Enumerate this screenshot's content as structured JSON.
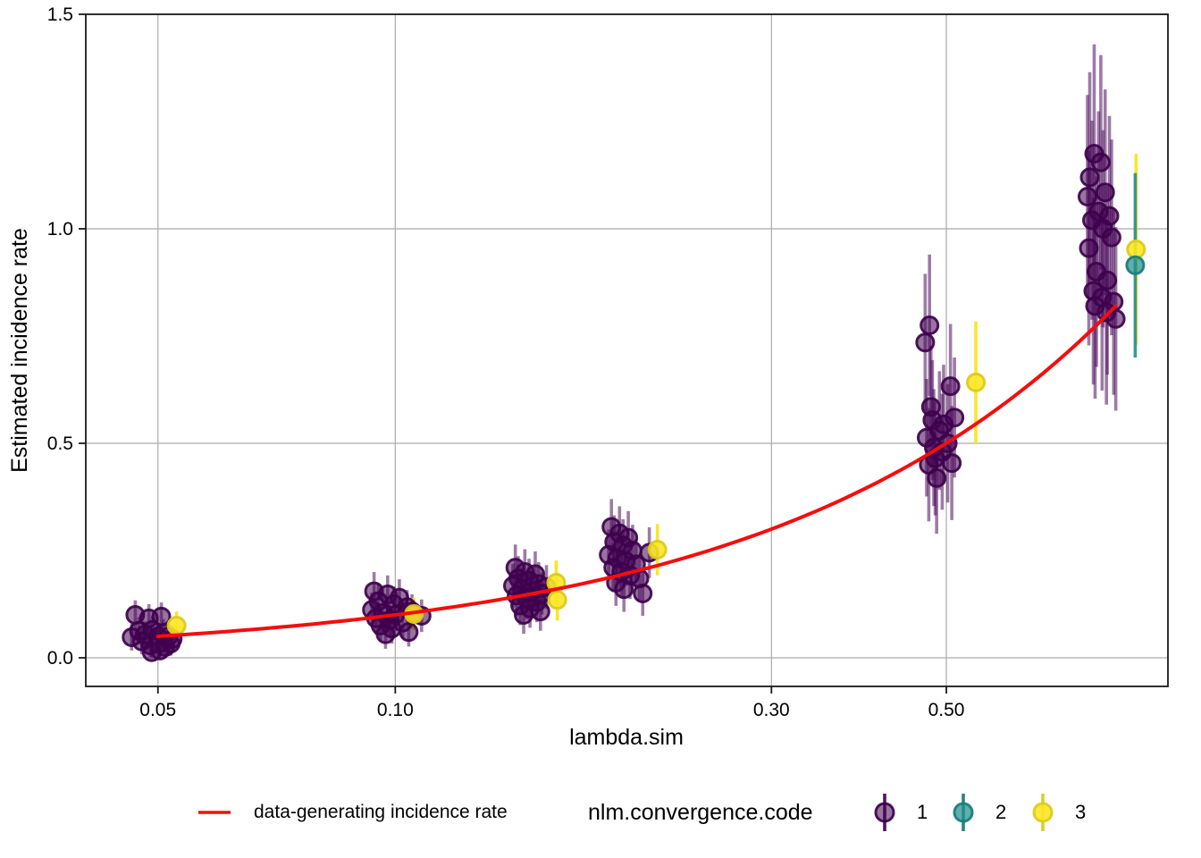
{
  "figure": {
    "background": "#ffffff"
  },
  "legend": {
    "line_label": "data-generating incidence rate",
    "title": "nlm.convergence.code",
    "items": [
      {
        "label": "1"
      },
      {
        "label": "2"
      },
      {
        "label": "3"
      }
    ]
  },
  "chart_data": {
    "type": "scatter",
    "title": "",
    "xlabel": "lambda.sim",
    "ylabel": "Estimated incidence rate",
    "x_scale": "log10",
    "grid": true,
    "legend_position": "bottom",
    "x_domain": [
      0.0405,
      0.955
    ],
    "y_domain": [
      -0.0667,
      1.5
    ],
    "x_ticks": {
      "values": [
        0.05,
        0.1,
        0.3,
        0.5
      ],
      "labels": [
        "0.05",
        "0.10",
        "0.30",
        "0.50"
      ]
    },
    "y_ticks": {
      "values": [
        0.0,
        0.5,
        1.0,
        1.5
      ],
      "labels": [
        "0.0",
        "0.5",
        "1.0",
        "1.5"
      ]
    },
    "grid_color": "#ababab",
    "border_color": "#1a1a1a",
    "reference_curve": {
      "label": "data-generating incidence rate",
      "relation": "y = lambda.sim (identity)",
      "x_start": 0.05,
      "x_end": 0.82,
      "color": "#F50D0D",
      "width": 4
    },
    "series_label": "nlm.convergence.code",
    "codes": {
      "1": {
        "label": "1",
        "base": "#440154",
        "fill": "rgba(68,1,84,0.55)",
        "stroke": "rgba(62,2,76,0.92)",
        "bar": "rgba(68,1,84,0.52)"
      },
      "2": {
        "label": "2",
        "base": "#21908C",
        "fill": "rgba(33,144,140,0.72)",
        "stroke": "rgba(28,126,122,0.95)",
        "bar": "rgba(33,144,140,0.9)"
      },
      "3": {
        "label": "3",
        "base": "#FDE725",
        "fill": "rgba(253,231,37,0.9)",
        "stroke": "rgba(222,202,28,0.95)",
        "bar": "rgba(250,228,33,0.95)"
      }
    },
    "points_format": [
      "lambda.sim",
      "estimate",
      "ci_low",
      "ci_high",
      "nlm.convergence.code"
    ],
    "points": [
      [
        0.0468,
        0.1,
        0.066,
        0.134,
        1
      ],
      [
        0.0487,
        0.092,
        0.059,
        0.125,
        1
      ],
      [
        0.0505,
        0.096,
        0.063,
        0.129,
        1
      ],
      [
        0.0473,
        0.063,
        0.031,
        0.095,
        1
      ],
      [
        0.0481,
        0.054,
        0.023,
        0.085,
        1
      ],
      [
        0.0492,
        0.065,
        0.033,
        0.097,
        1
      ],
      [
        0.05,
        0.05,
        0.02,
        0.08,
        1
      ],
      [
        0.0508,
        0.058,
        0.026,
        0.09,
        1
      ],
      [
        0.0516,
        0.05,
        0.019,
        0.081,
        1
      ],
      [
        0.0522,
        0.044,
        0.014,
        0.074,
        1
      ],
      [
        0.0477,
        0.038,
        0.008,
        0.068,
        1
      ],
      [
        0.0489,
        0.029,
        0.002,
        0.056,
        1
      ],
      [
        0.0501,
        0.033,
        0.004,
        0.062,
        1
      ],
      [
        0.0511,
        0.025,
        0.0,
        0.05,
        1
      ],
      [
        0.0519,
        0.033,
        0.005,
        0.061,
        1
      ],
      [
        0.0503,
        0.017,
        0.0,
        0.04,
        1
      ],
      [
        0.0491,
        0.013,
        0.0,
        0.034,
        1
      ],
      [
        0.0463,
        0.048,
        0.017,
        0.079,
        1
      ],
      [
        0.0528,
        0.075,
        0.042,
        0.108,
        3
      ],
      [
        0.094,
        0.155,
        0.11,
        0.2,
        1
      ],
      [
        0.0978,
        0.148,
        0.104,
        0.192,
        1
      ],
      [
        0.1012,
        0.14,
        0.097,
        0.183,
        1
      ],
      [
        0.0952,
        0.132,
        0.09,
        0.174,
        1
      ],
      [
        0.0996,
        0.125,
        0.084,
        0.166,
        1
      ],
      [
        0.1035,
        0.118,
        0.078,
        0.158,
        1
      ],
      [
        0.0934,
        0.112,
        0.072,
        0.152,
        1
      ],
      [
        0.0965,
        0.105,
        0.066,
        0.144,
        1
      ],
      [
        0.1,
        0.1,
        0.062,
        0.138,
        1
      ],
      [
        0.105,
        0.108,
        0.068,
        0.148,
        1
      ],
      [
        0.0945,
        0.092,
        0.054,
        0.13,
        1
      ],
      [
        0.0984,
        0.088,
        0.05,
        0.126,
        1
      ],
      [
        0.1022,
        0.082,
        0.045,
        0.119,
        1
      ],
      [
        0.0958,
        0.075,
        0.039,
        0.111,
        1
      ],
      [
        0.099,
        0.068,
        0.033,
        0.103,
        1
      ],
      [
        0.104,
        0.06,
        0.026,
        0.094,
        1
      ],
      [
        0.0972,
        0.055,
        0.021,
        0.089,
        1
      ],
      [
        0.108,
        0.098,
        0.06,
        0.136,
        1
      ],
      [
        0.1056,
        0.102,
        0.064,
        0.14,
        3
      ],
      [
        0.142,
        0.21,
        0.156,
        0.264,
        1
      ],
      [
        0.146,
        0.2,
        0.147,
        0.253,
        1
      ],
      [
        0.1505,
        0.195,
        0.142,
        0.248,
        1
      ],
      [
        0.1432,
        0.185,
        0.133,
        0.237,
        1
      ],
      [
        0.1478,
        0.18,
        0.129,
        0.231,
        1
      ],
      [
        0.152,
        0.172,
        0.121,
        0.223,
        1
      ],
      [
        0.141,
        0.168,
        0.117,
        0.219,
        1
      ],
      [
        0.1448,
        0.16,
        0.11,
        0.21,
        1
      ],
      [
        0.149,
        0.155,
        0.106,
        0.204,
        1
      ],
      [
        0.1535,
        0.15,
        0.101,
        0.199,
        1
      ],
      [
        0.1425,
        0.145,
        0.097,
        0.193,
        1
      ],
      [
        0.1468,
        0.138,
        0.09,
        0.186,
        1
      ],
      [
        0.1512,
        0.13,
        0.083,
        0.177,
        1
      ],
      [
        0.144,
        0.122,
        0.076,
        0.168,
        1
      ],
      [
        0.1482,
        0.115,
        0.07,
        0.16,
        1
      ],
      [
        0.1528,
        0.108,
        0.063,
        0.153,
        1
      ],
      [
        0.1455,
        0.1,
        0.056,
        0.144,
        1
      ],
      [
        0.1555,
        0.165,
        0.114,
        0.216,
        1
      ],
      [
        0.16,
        0.175,
        0.123,
        0.227,
        3
      ],
      [
        0.1605,
        0.135,
        0.087,
        0.183,
        3
      ],
      [
        0.188,
        0.305,
        0.24,
        0.37,
        1
      ],
      [
        0.1925,
        0.29,
        0.227,
        0.353,
        1
      ],
      [
        0.1975,
        0.28,
        0.218,
        0.342,
        1
      ],
      [
        0.1895,
        0.27,
        0.208,
        0.332,
        1
      ],
      [
        0.1945,
        0.262,
        0.201,
        0.323,
        1
      ],
      [
        0.2,
        0.25,
        0.19,
        0.31,
        1
      ],
      [
        0.1865,
        0.24,
        0.181,
        0.299,
        1
      ],
      [
        0.1912,
        0.232,
        0.173,
        0.291,
        1
      ],
      [
        0.196,
        0.225,
        0.167,
        0.283,
        1
      ],
      [
        0.202,
        0.218,
        0.16,
        0.276,
        1
      ],
      [
        0.189,
        0.21,
        0.153,
        0.267,
        1
      ],
      [
        0.1935,
        0.2,
        0.144,
        0.256,
        1
      ],
      [
        0.1985,
        0.192,
        0.137,
        0.247,
        1
      ],
      [
        0.204,
        0.185,
        0.13,
        0.24,
        1
      ],
      [
        0.1905,
        0.175,
        0.121,
        0.229,
        1
      ],
      [
        0.195,
        0.16,
        0.107,
        0.213,
        1
      ],
      [
        0.206,
        0.15,
        0.098,
        0.202,
        1
      ],
      [
        0.21,
        0.245,
        0.186,
        0.304,
        1
      ],
      [
        0.215,
        0.252,
        0.192,
        0.312,
        3
      ],
      [
        0.476,
        0.775,
        0.61,
        0.94,
        1
      ],
      [
        0.47,
        0.735,
        0.575,
        0.895,
        1
      ],
      [
        0.506,
        0.633,
        0.488,
        0.778,
        1
      ],
      [
        0.478,
        0.585,
        0.443,
        0.727,
        1
      ],
      [
        0.48,
        0.554,
        0.414,
        0.694,
        1
      ],
      [
        0.496,
        0.544,
        0.405,
        0.683,
        1
      ],
      [
        0.472,
        0.513,
        0.376,
        0.65,
        1
      ],
      [
        0.482,
        0.49,
        0.354,
        0.626,
        1
      ],
      [
        0.494,
        0.48,
        0.345,
        0.615,
        1
      ],
      [
        0.508,
        0.454,
        0.321,
        0.587,
        1
      ],
      [
        0.475,
        0.45,
        0.318,
        0.582,
        1
      ],
      [
        0.486,
        0.419,
        0.289,
        0.549,
        1
      ],
      [
        0.49,
        0.53,
        0.392,
        0.668,
        1
      ],
      [
        0.502,
        0.5,
        0.362,
        0.638,
        1
      ],
      [
        0.484,
        0.465,
        0.332,
        0.598,
        1
      ],
      [
        0.512,
        0.56,
        0.42,
        0.7,
        1
      ],
      [
        0.545,
        0.642,
        0.5,
        0.784,
        3
      ],
      [
        0.77,
        1.175,
        0.92,
        1.43,
        1
      ],
      [
        0.785,
        1.155,
        0.905,
        1.405,
        1
      ],
      [
        0.76,
        1.12,
        0.875,
        1.365,
        1
      ],
      [
        0.795,
        1.085,
        0.845,
        1.325,
        1
      ],
      [
        0.755,
        1.075,
        0.838,
        1.312,
        1
      ],
      [
        0.78,
        1.04,
        0.806,
        1.274,
        1
      ],
      [
        0.805,
        1.03,
        0.797,
        1.263,
        1
      ],
      [
        0.765,
        1.02,
        0.788,
        1.252,
        1
      ],
      [
        0.79,
        1.0,
        0.77,
        1.23,
        1
      ],
      [
        0.81,
        0.98,
        0.752,
        1.208,
        1
      ],
      [
        0.758,
        0.955,
        0.728,
        1.182,
        1
      ],
      [
        0.775,
        0.9,
        0.678,
        1.122,
        1
      ],
      [
        0.8,
        0.88,
        0.66,
        1.1,
        1
      ],
      [
        0.768,
        0.855,
        0.637,
        1.073,
        1
      ],
      [
        0.788,
        0.84,
        0.623,
        1.057,
        1
      ],
      [
        0.815,
        0.83,
        0.613,
        1.047,
        1
      ],
      [
        0.772,
        0.82,
        0.604,
        1.036,
        1
      ],
      [
        0.798,
        0.805,
        0.59,
        1.02,
        1
      ],
      [
        0.82,
        0.79,
        0.576,
        1.004,
        1
      ],
      [
        0.87,
        0.952,
        0.73,
        1.175,
        3
      ],
      [
        0.868,
        0.915,
        0.7,
        1.13,
        2
      ]
    ]
  }
}
